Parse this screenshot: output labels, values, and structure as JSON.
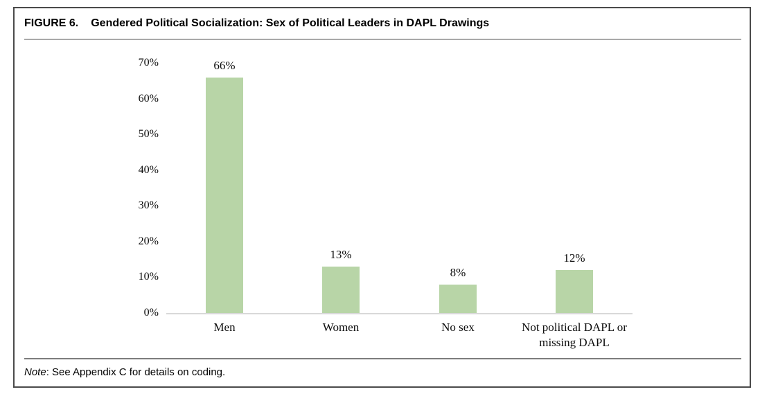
{
  "figure": {
    "label": "FIGURE 6.",
    "caption": "Gendered Political Socialization: Sex of Political Leaders in DAPL Drawings"
  },
  "chart_data": {
    "type": "bar",
    "title": "Gendered Political Socialization: Sex of Political Leaders in DAPL Drawings",
    "categories": [
      "Men",
      "Women",
      "No sex",
      "Not political DAPL or missing DAPL"
    ],
    "values": [
      66,
      13,
      8,
      12
    ],
    "data_labels": [
      "66%",
      "13%",
      "8%",
      "12%"
    ],
    "y_ticks": [
      "70%",
      "60%",
      "50%",
      "40%",
      "30%",
      "20%",
      "10%",
      "0%"
    ],
    "ylim": [
      0,
      70
    ],
    "xlabel": "",
    "ylabel": "",
    "grid": false,
    "legend": false,
    "bar_color": "#b8d5a7",
    "axis_color": "#d9d9d9",
    "text_color": "#0d0d0d"
  },
  "note": {
    "prefix": "Note",
    "text": ": See Appendix C for details on coding."
  }
}
